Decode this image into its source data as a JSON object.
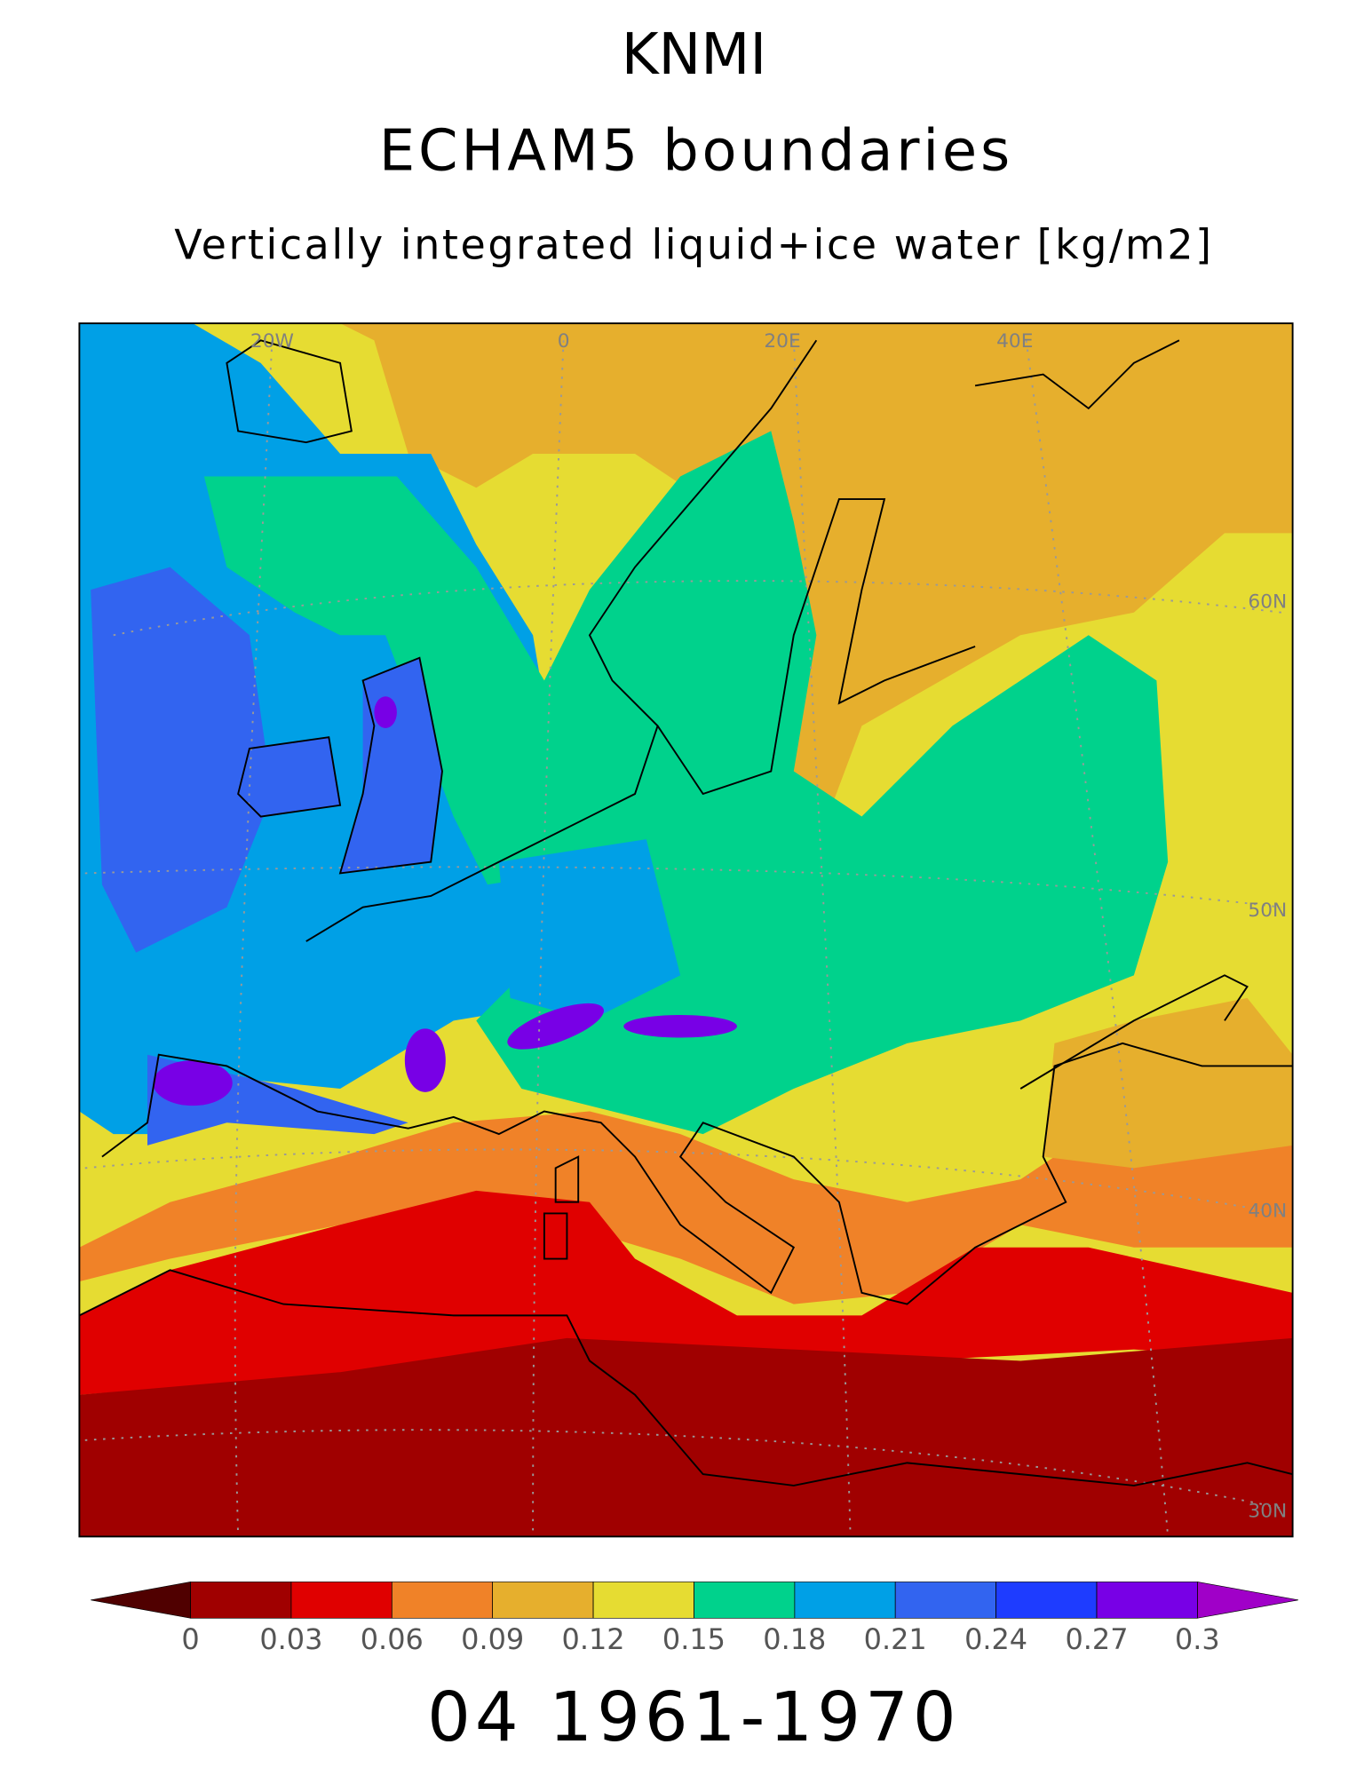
{
  "header": {
    "title": "KNMI",
    "subtitle": "ECHAM5 boundaries",
    "variable": "Vertically integrated liquid+ice water [kg/m2]"
  },
  "map": {
    "graticule_labels": [
      "20W",
      "0",
      "20E",
      "40E",
      "60N",
      "50N",
      "40N",
      "30N"
    ]
  },
  "colorbar": {
    "ticks": [
      0,
      0.03,
      0.06,
      0.09,
      0.12,
      0.15,
      0.18,
      0.21,
      0.24,
      0.27,
      0.3
    ],
    "colors": [
      "#a00000",
      "#e00000",
      "#f08228",
      "#e6af2d",
      "#e6dc32",
      "#00d28c",
      "#00a0e6",
      "#3264f0",
      "#1e3cff",
      "#7800e6"
    ],
    "under_color": "#500000",
    "over_color": "#a000c8"
  },
  "footer": {
    "period": "04 1961-1970"
  }
}
